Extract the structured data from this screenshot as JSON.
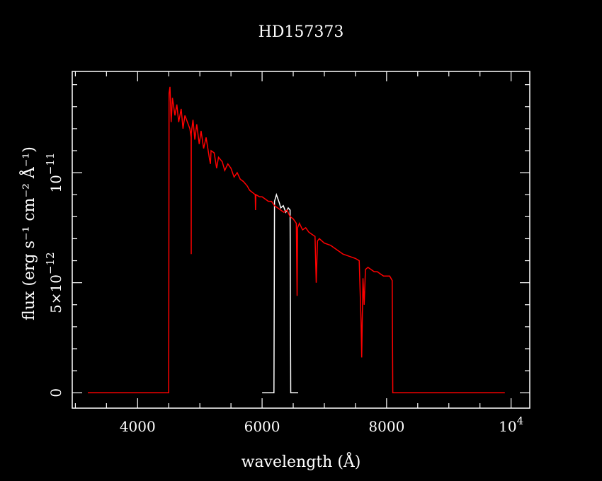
{
  "chart_data": {
    "type": "line",
    "title": "HD157373",
    "xlabel": "wavelength (Å)",
    "ylabel": "flux (erg s⁻¹ cm⁻² Å⁻¹)",
    "xlim": [
      2950,
      10300
    ],
    "ylim": [
      -7e-13,
      1.46e-11
    ],
    "x_ticks": [
      {
        "value": 4000,
        "label": "4000"
      },
      {
        "value": 6000,
        "label": "6000"
      },
      {
        "value": 8000,
        "label": "8000"
      },
      {
        "value": 10000,
        "label": "10",
        "exponent": "4"
      }
    ],
    "y_ticks": [
      {
        "value": 0,
        "label": "0"
      },
      {
        "value": 5e-12,
        "label": "5×10",
        "exponent": "−12"
      },
      {
        "value": 1e-11,
        "label": "10",
        "exponent": "−11"
      }
    ],
    "grid": false,
    "colors": {
      "background": "#000000",
      "axes": "#ffffff",
      "series_1": "#ffffff",
      "series_2": "#ff0000"
    },
    "series": [
      {
        "color": "#ffffff",
        "points": [
          [
            6000,
            0
          ],
          [
            6190,
            0
          ],
          [
            6200,
            8.7e-12
          ],
          [
            6230,
            9e-12
          ],
          [
            6280,
            8.6e-12
          ],
          [
            6300,
            8.4e-12
          ],
          [
            6340,
            8.5e-12
          ],
          [
            6380,
            8.2e-12
          ],
          [
            6420,
            8.4e-12
          ],
          [
            6450,
            8.3e-12
          ],
          [
            6460,
            0
          ],
          [
            6580,
            0
          ]
        ]
      },
      {
        "color": "#ff0000",
        "points": [
          [
            3200,
            0
          ],
          [
            4500,
            0
          ],
          [
            4505,
            1.36e-11
          ],
          [
            4520,
            1.39e-11
          ],
          [
            4540,
            1.23e-11
          ],
          [
            4560,
            1.34e-11
          ],
          [
            4600,
            1.26e-11
          ],
          [
            4630,
            1.31e-11
          ],
          [
            4660,
            1.23e-11
          ],
          [
            4700,
            1.29e-11
          ],
          [
            4730,
            1.2e-11
          ],
          [
            4760,
            1.26e-11
          ],
          [
            4800,
            1.23e-11
          ],
          [
            4840,
            1.2e-11
          ],
          [
            4860,
            1.16e-11
          ],
          [
            4861,
            6.3e-12
          ],
          [
            4863,
            1.18e-11
          ],
          [
            4890,
            1.24e-11
          ],
          [
            4920,
            1.15e-11
          ],
          [
            4950,
            1.22e-11
          ],
          [
            4990,
            1.13e-11
          ],
          [
            5020,
            1.19e-11
          ],
          [
            5060,
            1.11e-11
          ],
          [
            5100,
            1.16e-11
          ],
          [
            5150,
            1.07e-11
          ],
          [
            5170,
            1.04e-11
          ],
          [
            5180,
            1.1e-11
          ],
          [
            5230,
            1.09e-11
          ],
          [
            5270,
            1.02e-11
          ],
          [
            5300,
            1.07e-11
          ],
          [
            5360,
            1.05e-11
          ],
          [
            5400,
            1.01e-11
          ],
          [
            5450,
            1.04e-11
          ],
          [
            5500,
            1.02e-11
          ],
          [
            5550,
            9.8e-12
          ],
          [
            5600,
            1e-11
          ],
          [
            5650,
            9.7e-12
          ],
          [
            5700,
            9.6e-12
          ],
          [
            5760,
            9.4e-12
          ],
          [
            5800,
            9.2e-12
          ],
          [
            5890,
            9e-12
          ],
          [
            5895,
            8.3e-12
          ],
          [
            5900,
            9e-12
          ],
          [
            5960,
            8.9e-12
          ],
          [
            6000,
            8.9e-12
          ],
          [
            6050,
            8.8e-12
          ],
          [
            6100,
            8.7e-12
          ],
          [
            6150,
            8.7e-12
          ],
          [
            6200,
            8.5e-12
          ],
          [
            6250,
            8.4e-12
          ],
          [
            6300,
            8.3e-12
          ],
          [
            6350,
            8.2e-12
          ],
          [
            6400,
            8.3e-12
          ],
          [
            6450,
            8e-12
          ],
          [
            6500,
            7.9e-12
          ],
          [
            6550,
            7.7e-12
          ],
          [
            6562,
            4.4e-12
          ],
          [
            6570,
            7.5e-12
          ],
          [
            6600,
            7.7e-12
          ],
          [
            6650,
            7.4e-12
          ],
          [
            6700,
            7.5e-12
          ],
          [
            6750,
            7.3e-12
          ],
          [
            6800,
            7.2e-12
          ],
          [
            6850,
            7.1e-12
          ],
          [
            6870,
            5e-12
          ],
          [
            6890,
            6.9e-12
          ],
          [
            6920,
            7e-12
          ],
          [
            6960,
            6.9e-12
          ],
          [
            7000,
            6.8e-12
          ],
          [
            7100,
            6.7e-12
          ],
          [
            7200,
            6.5e-12
          ],
          [
            7300,
            6.3e-12
          ],
          [
            7400,
            6.2e-12
          ],
          [
            7500,
            6.1e-12
          ],
          [
            7560,
            6e-12
          ],
          [
            7590,
            3.2e-12
          ],
          [
            7600,
            1.6e-12
          ],
          [
            7610,
            3.5e-12
          ],
          [
            7620,
            5.2e-12
          ],
          [
            7640,
            4e-12
          ],
          [
            7660,
            5.6e-12
          ],
          [
            7700,
            5.7e-12
          ],
          [
            7750,
            5.6e-12
          ],
          [
            7800,
            5.5e-12
          ],
          [
            7850,
            5.5e-12
          ],
          [
            7900,
            5.4e-12
          ],
          [
            7950,
            5.3e-12
          ],
          [
            8000,
            5.3e-12
          ],
          [
            8050,
            5.3e-12
          ],
          [
            8090,
            5.1e-12
          ],
          [
            8100,
            0
          ],
          [
            9900,
            0
          ]
        ]
      }
    ]
  }
}
